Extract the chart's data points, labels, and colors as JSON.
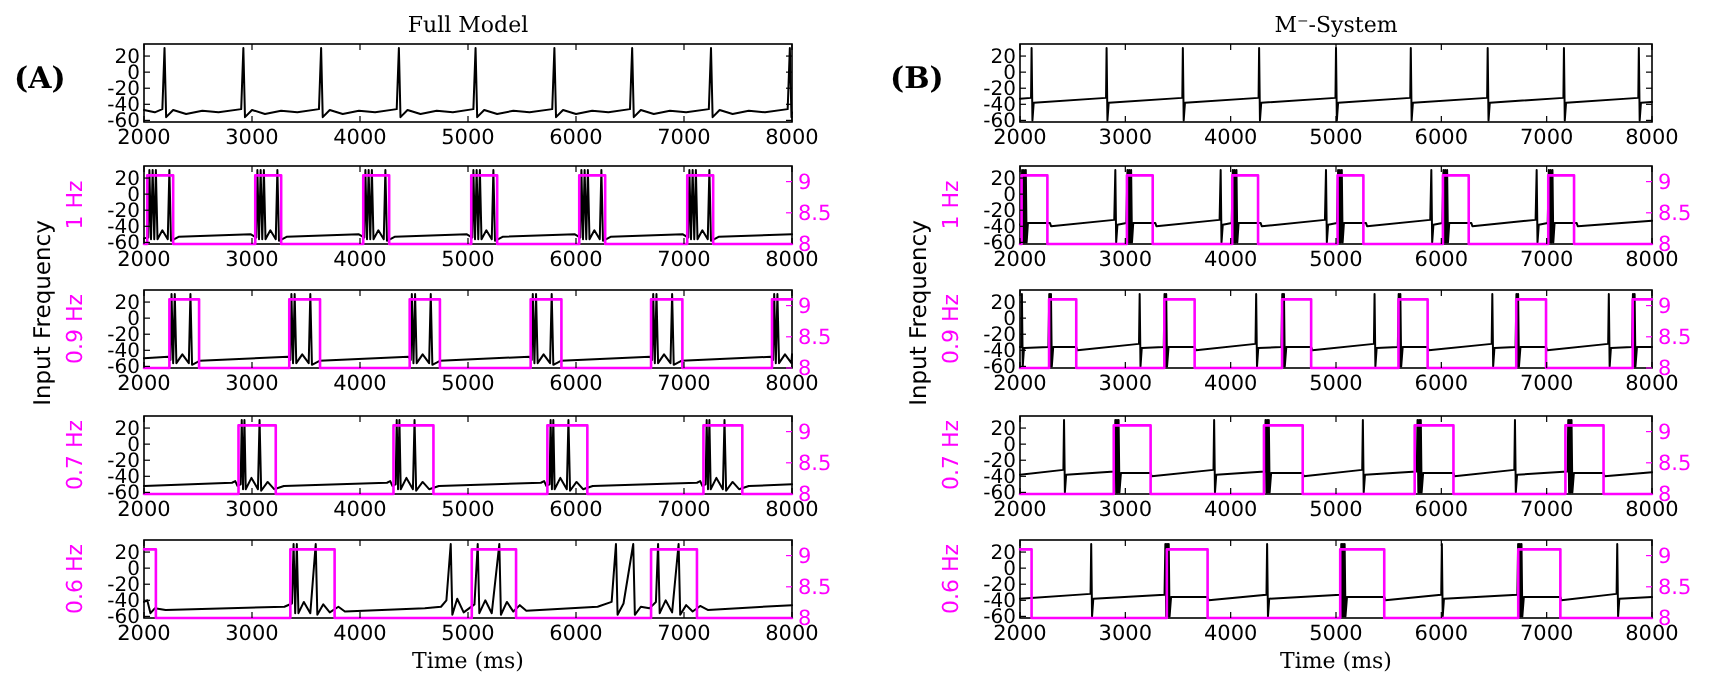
{
  "chart_data": [
    {
      "type": "line",
      "title": "Full Model",
      "annotations": [
        "(A)"
      ],
      "xlim": [
        2000,
        8000
      ],
      "xticks": [
        2000,
        3000,
        4000,
        5000,
        6000,
        7000,
        8000
      ],
      "ylim": [
        -62,
        35
      ],
      "yticks": [
        -60,
        -40,
        -20,
        0,
        20
      ],
      "series": [
        {
          "color": "#000000",
          "x": [
            2000,
            2100,
            2170,
            2190,
            2205,
            2270,
            2390,
            2540,
            2690,
            2900,
            2920,
            2935,
            3000,
            3120,
            3270,
            3420,
            3620,
            3640,
            3655,
            3720,
            3840,
            3990,
            4140,
            4340,
            4360,
            4375,
            4440,
            4560,
            4710,
            4860,
            5050,
            5070,
            5085,
            5150,
            5270,
            5420,
            5570,
            5780,
            5800,
            5815,
            5880,
            6000,
            6150,
            6300,
            6500,
            6520,
            6535,
            6600,
            6720,
            6870,
            7020,
            7230,
            7250,
            7265,
            7330,
            7450,
            7600,
            7750,
            7960,
            7980,
            7995,
            8000
          ],
          "values": [
            -47,
            -50,
            -46,
            30,
            -56,
            -47,
            -52,
            -48,
            -50,
            -46,
            30,
            -56,
            -47,
            -52,
            -48,
            -50,
            -46,
            30,
            -56,
            -47,
            -52,
            -48,
            -50,
            -46,
            30,
            -56,
            -47,
            -52,
            -48,
            -50,
            -46,
            30,
            -56,
            -47,
            -52,
            -48,
            -50,
            -46,
            30,
            -56,
            -47,
            -52,
            -48,
            -50,
            -46,
            30,
            -56,
            -47,
            -52,
            -48,
            -50,
            -46,
            30,
            -56,
            -47,
            -52,
            -48,
            -50,
            -46,
            30,
            -56,
            -50
          ]
        }
      ]
    },
    {
      "type": "line",
      "ylabel": "1 Hz",
      "xlim": [
        2000,
        8000
      ],
      "xticks": [
        2000,
        3000,
        4000,
        5000,
        6000,
        7000,
        8000
      ],
      "ylim": [
        -62,
        35
      ],
      "yticks": [
        -60,
        -40,
        -20,
        0,
        20
      ],
      "y2lim": [
        8,
        9.25
      ],
      "y2ticks": [
        8,
        8.5,
        9
      ],
      "series": [
        {
          "color": "#000000",
          "x": [
            2000,
            2040,
            2050,
            2065,
            2080,
            2095,
            2110,
            2125,
            2170,
            2220,
            2235,
            2250,
            2320,
            2990,
            3040,
            3050,
            3065,
            3080,
            3095,
            3110,
            3125,
            3170,
            3220,
            3235,
            3250,
            3320,
            3990,
            4040,
            4050,
            4065,
            4080,
            4095,
            4110,
            4125,
            4170,
            4220,
            4235,
            4250,
            4320,
            4990,
            5040,
            5050,
            5065,
            5080,
            5095,
            5110,
            5125,
            5170,
            5220,
            5235,
            5250,
            5320,
            5990,
            6040,
            6050,
            6065,
            6080,
            6095,
            6110,
            6125,
            6170,
            6220,
            6235,
            6250,
            6320,
            6990,
            7040,
            7050,
            7065,
            7080,
            7095,
            7110,
            7125,
            7170,
            7220,
            7235,
            7250,
            7320,
            8000
          ],
          "values": [
            -55,
            -54,
            30,
            -56,
            30,
            -56,
            30,
            -56,
            -45,
            -56,
            30,
            -58,
            -53,
            -50,
            -54,
            30,
            -56,
            30,
            -56,
            30,
            -56,
            -45,
            -56,
            30,
            -58,
            -53,
            -50,
            -54,
            30,
            -56,
            30,
            -56,
            30,
            -56,
            -45,
            -56,
            30,
            -58,
            -53,
            -50,
            -54,
            30,
            -56,
            30,
            -56,
            30,
            -56,
            -45,
            -56,
            30,
            -58,
            -53,
            -50,
            -54,
            30,
            -56,
            30,
            -56,
            30,
            -56,
            -45,
            -56,
            30,
            -58,
            -53,
            -50,
            -54,
            30,
            -56,
            30,
            -56,
            30,
            -56,
            -45,
            -56,
            30,
            -58,
            -53,
            -50
          ]
        },
        {
          "color": "#ff00ff",
          "axis": "y2",
          "x": [
            2000,
            2030,
            2030,
            2270,
            2270,
            3030,
            3030,
            3270,
            3270,
            4030,
            4030,
            4270,
            4270,
            5030,
            5030,
            5270,
            5270,
            6030,
            6030,
            6270,
            6270,
            7030,
            7030,
            7270,
            7270,
            8000
          ],
          "values": [
            8,
            8,
            9.1,
            9.1,
            8,
            8,
            9.1,
            9.1,
            8,
            8,
            9.1,
            9.1,
            8,
            8,
            9.1,
            9.1,
            8,
            8,
            9.1,
            9.1,
            8,
            8,
            9.1,
            9.1,
            8,
            8
          ]
        }
      ]
    },
    {
      "type": "line",
      "ylabel": "0.9 Hz",
      "annotations": [
        "Input Frequency"
      ],
      "xlim": [
        2000,
        8000
      ],
      "xticks": [
        2000,
        3000,
        4000,
        5000,
        6000,
        7000,
        8000
      ],
      "ylim": [
        -62,
        35
      ],
      "yticks": [
        -60,
        -40,
        -20,
        0,
        20
      ],
      "y2lim": [
        8,
        9.25
      ],
      "y2ticks": [
        8,
        8.5,
        9
      ],
      "series": [
        {
          "color": "#000000",
          "x": [
            2000,
            2225,
            2245,
            2255,
            2270,
            2285,
            2300,
            2355,
            2415,
            2430,
            2445,
            2515,
            3335,
            3355,
            3365,
            3380,
            3395,
            3410,
            3465,
            3525,
            3540,
            3555,
            3625,
            4450,
            4470,
            4480,
            4495,
            4510,
            4525,
            4580,
            4640,
            4655,
            4670,
            4740,
            5570,
            5590,
            5600,
            5615,
            5630,
            5645,
            5700,
            5760,
            5775,
            5790,
            5860,
            6685,
            6705,
            6715,
            6730,
            6745,
            6760,
            6815,
            6875,
            6890,
            6905,
            6975,
            7805,
            7825,
            7835,
            7850,
            7865,
            7880,
            7935,
            7995,
            8000
          ],
          "values": [
            -50,
            -48,
            -52,
            30,
            -56,
            30,
            -56,
            -45,
            -56,
            30,
            -58,
            -53,
            -48,
            -52,
            30,
            -56,
            30,
            -56,
            -45,
            -56,
            30,
            -58,
            -53,
            -48,
            -52,
            30,
            -56,
            30,
            -56,
            -45,
            -56,
            30,
            -58,
            -53,
            -48,
            -52,
            30,
            -56,
            30,
            -56,
            -45,
            -56,
            30,
            -58,
            -53,
            -48,
            -52,
            30,
            -56,
            30,
            -56,
            -45,
            -56,
            30,
            -58,
            -53,
            -48,
            -52,
            30,
            -56,
            30,
            -56,
            -45,
            -56,
            -45
          ]
        },
        {
          "color": "#ff00ff",
          "axis": "y2",
          "x": [
            2000,
            2235,
            2235,
            2510,
            2510,
            3345,
            3345,
            3630,
            3630,
            4460,
            4460,
            4740,
            4740,
            5580,
            5580,
            5865,
            5865,
            6695,
            6695,
            6985,
            6985,
            7815,
            7815,
            8000
          ],
          "values": [
            8,
            8,
            9.1,
            9.1,
            8,
            8,
            9.1,
            9.1,
            8,
            8,
            9.1,
            9.1,
            8,
            8,
            9.1,
            9.1,
            8,
            8,
            9.1,
            9.1,
            8,
            8,
            9.1,
            9.1
          ]
        }
      ]
    },
    {
      "type": "line",
      "ylabel": "0.7 Hz",
      "xlim": [
        2000,
        8000
      ],
      "xticks": [
        2000,
        3000,
        4000,
        5000,
        6000,
        7000,
        8000
      ],
      "ylim": [
        -62,
        35
      ],
      "yticks": [
        -60,
        -40,
        -20,
        0,
        20
      ],
      "y2lim": [
        8,
        9.25
      ],
      "y2ticks": [
        8,
        8.5,
        9
      ],
      "series": [
        {
          "color": "#000000",
          "x": [
            2000,
            2815,
            2845,
            2865,
            2895,
            2905,
            2917,
            2930,
            2942,
            2995,
            3055,
            3070,
            3085,
            3145,
            3205,
            3295,
            4250,
            4280,
            4300,
            4330,
            4340,
            4352,
            4365,
            4377,
            4430,
            4490,
            4505,
            4520,
            4580,
            4640,
            4730,
            5675,
            5705,
            5725,
            5755,
            5765,
            5777,
            5790,
            5802,
            5855,
            5915,
            5930,
            5945,
            6005,
            6065,
            6155,
            7120,
            7150,
            7170,
            7200,
            7210,
            7222,
            7235,
            7247,
            7300,
            7360,
            7375,
            7390,
            7450,
            7510,
            7600,
            8000
          ],
          "values": [
            -52,
            -48,
            -46,
            -52,
            -50,
            30,
            -56,
            30,
            -56,
            -42,
            -56,
            30,
            -58,
            -47,
            -56,
            -52,
            -48,
            -46,
            -52,
            -50,
            30,
            -56,
            30,
            -56,
            -42,
            -56,
            30,
            -58,
            -47,
            -56,
            -52,
            -48,
            -46,
            -52,
            -50,
            30,
            -56,
            30,
            -56,
            -42,
            -56,
            30,
            -58,
            -47,
            -56,
            -52,
            -48,
            -46,
            -52,
            -50,
            30,
            -56,
            30,
            -56,
            -42,
            -56,
            30,
            -58,
            -47,
            -56,
            -52,
            -50
          ]
        },
        {
          "color": "#ff00ff",
          "axis": "y2",
          "x": [
            2000,
            2875,
            2875,
            3220,
            3220,
            4310,
            4310,
            4680,
            4680,
            5735,
            5735,
            6105,
            6105,
            7180,
            7180,
            7540,
            7540,
            8000
          ],
          "values": [
            8,
            8,
            9.1,
            9.1,
            8,
            8,
            9.1,
            9.1,
            8,
            8,
            9.1,
            9.1,
            8,
            8,
            9.1,
            9.1,
            8,
            8
          ]
        }
      ]
    },
    {
      "type": "line",
      "ylabel": "0.6 Hz",
      "xlabel": "Time (ms)",
      "xlim": [
        2000,
        8000
      ],
      "xticks": [
        2000,
        3000,
        4000,
        5000,
        6000,
        7000,
        8000
      ],
      "ylim": [
        -62,
        35
      ],
      "yticks": [
        -60,
        -40,
        -20,
        0,
        20
      ],
      "y2lim": [
        8,
        9.25
      ],
      "y2ticks": [
        8,
        8.5,
        9
      ],
      "series": [
        {
          "color": "#000000",
          "x": [
            2000,
            2030,
            2060,
            2100,
            2200,
            3300,
            3370,
            3385,
            3400,
            3415,
            3430,
            3480,
            3540,
            3590,
            3605,
            3660,
            3720,
            3800,
            3860,
            4600,
            4750,
            4800,
            4840,
            4855,
            4900,
            4960,
            5060,
            5090,
            5105,
            5160,
            5220,
            5290,
            5305,
            5360,
            5420,
            5480,
            5540,
            6200,
            6330,
            6370,
            6385,
            6440,
            6530,
            6545,
            6600,
            6680,
            6740,
            6760,
            6775,
            6830,
            6890,
            6950,
            6965,
            7020,
            7080,
            7150,
            7220,
            8000
          ],
          "values": [
            -42,
            -40,
            -56,
            -50,
            -52,
            -48,
            -44,
            30,
            -56,
            30,
            -56,
            -42,
            -56,
            30,
            -58,
            -45,
            -55,
            -48,
            -54,
            -50,
            -48,
            -40,
            30,
            -58,
            -38,
            -55,
            -45,
            30,
            -56,
            -40,
            -56,
            30,
            -58,
            -42,
            -54,
            -46,
            -53,
            -48,
            -42,
            30,
            -58,
            -44,
            30,
            -58,
            -48,
            -50,
            -42,
            30,
            -56,
            -40,
            -55,
            30,
            -58,
            -46,
            -54,
            -47,
            -52,
            -46
          ]
        },
        {
          "color": "#ff00ff",
          "axis": "y2",
          "x": [
            2000,
            2110,
            2110,
            3355,
            3355,
            3765,
            3765,
            5035,
            5035,
            5445,
            5445,
            6695,
            6695,
            7120,
            7120,
            8000
          ],
          "values": [
            9.1,
            9.1,
            8,
            8,
            9.1,
            9.1,
            8,
            8,
            9.1,
            9.1,
            8,
            8,
            9.1,
            9.1,
            8,
            8
          ]
        }
      ]
    },
    {
      "type": "line",
      "title": "M⁻-System",
      "annotations": [
        "(B)"
      ],
      "xlim": [
        2000,
        8000
      ],
      "xticks": [
        2000,
        3000,
        4000,
        5000,
        6000,
        7000,
        8000
      ],
      "ylim": [
        -62,
        35
      ],
      "yticks": [
        -60,
        -40,
        -20,
        0,
        20
      ],
      "series": [
        {
          "color": "#000000",
          "x": [
            2000,
            2105,
            2110,
            2118,
            2130,
            2817,
            2822,
            2830,
            2842,
            3541,
            3546,
            3554,
            3566,
            4265,
            4270,
            4278,
            4290,
            4995,
            5000,
            5008,
            5020,
            5705,
            5710,
            5718,
            5730,
            6435,
            6440,
            6448,
            6460,
            7159,
            7164,
            7172,
            7184,
            7870,
            7875,
            7883,
            7895,
            8000
          ],
          "values": [
            -33,
            -32,
            30,
            -60,
            -38,
            -32,
            30,
            -60,
            -38,
            -32,
            30,
            -60,
            -38,
            -32,
            30,
            -60,
            -38,
            -32,
            30,
            -60,
            -38,
            -32,
            30,
            -60,
            -38,
            -32,
            30,
            -60,
            -38,
            -32,
            30,
            -60,
            -38,
            -32,
            30,
            -60,
            -38,
            -37
          ]
        }
      ]
    },
    {
      "type": "line",
      "ylabel": "1 Hz",
      "xlim": [
        2000,
        8000
      ],
      "xticks": [
        2000,
        3000,
        4000,
        5000,
        6000,
        7000,
        8000
      ],
      "ylim": [
        -62,
        35
      ],
      "yticks": [
        -60,
        -40,
        -20,
        0,
        20
      ],
      "y2lim": [
        8,
        9.25
      ],
      "y2ticks": [
        8,
        8.5,
        9
      ],
      "series": [
        {
          "color": "#000000",
          "x": [
            2000,
            2010,
            2020,
            2028,
            2037,
            2045,
            2055,
            2063,
            2075,
            2285,
            2295,
            2895,
            2905,
            2913,
            2925,
            3010,
            3020,
            3028,
            3037,
            3045,
            3055,
            3063,
            3075,
            3285,
            3295,
            3895,
            3905,
            3913,
            3925,
            4010,
            4020,
            4028,
            4037,
            4045,
            4055,
            4063,
            4075,
            4285,
            4295,
            4895,
            4905,
            4913,
            4925,
            5010,
            5020,
            5028,
            5037,
            5045,
            5055,
            5063,
            5075,
            5285,
            5295,
            5895,
            5905,
            5913,
            5925,
            6010,
            6020,
            6028,
            6037,
            6045,
            6055,
            6063,
            6075,
            6285,
            6295,
            6895,
            6905,
            6913,
            6925,
            7010,
            7020,
            7028,
            7037,
            7045,
            7055,
            7063,
            7075,
            7285,
            7295,
            8000
          ],
          "values": [
            -38,
            -36,
            30,
            -60,
            30,
            -60,
            30,
            -60,
            -36,
            -36,
            -40,
            -32,
            30,
            -60,
            -38,
            -36,
            30,
            -60,
            30,
            -60,
            30,
            -60,
            -36,
            -36,
            -40,
            -32,
            30,
            -60,
            -38,
            -36,
            30,
            -60,
            30,
            -60,
            30,
            -60,
            -36,
            -36,
            -40,
            -32,
            30,
            -60,
            -38,
            -36,
            30,
            -60,
            30,
            -60,
            30,
            -60,
            -36,
            -36,
            -40,
            -32,
            30,
            -60,
            -38,
            -36,
            30,
            -60,
            30,
            -60,
            30,
            -60,
            -36,
            -36,
            -40,
            -32,
            30,
            -60,
            -38,
            -36,
            30,
            -60,
            30,
            -60,
            30,
            -60,
            -36,
            -36,
            -40,
            -33
          ]
        },
        {
          "color": "#ff00ff",
          "axis": "y2",
          "x": [
            2000,
            2015,
            2015,
            2260,
            2260,
            3015,
            3015,
            3260,
            3260,
            4015,
            4015,
            4260,
            4260,
            5015,
            5015,
            5260,
            5260,
            6015,
            6015,
            6260,
            6260,
            7015,
            7015,
            7260,
            7260,
            8000
          ],
          "values": [
            8,
            8,
            9.1,
            9.1,
            8,
            8,
            9.1,
            9.1,
            8,
            8,
            9.1,
            9.1,
            8,
            8,
            9.1,
            9.1,
            8,
            8,
            9.1,
            9.1,
            8,
            8,
            9.1,
            9.1,
            8,
            8
          ]
        }
      ]
    },
    {
      "type": "line",
      "ylabel": "0.9 Hz",
      "annotations": [
        "Input Frequency"
      ],
      "xlim": [
        2000,
        8000
      ],
      "xticks": [
        2000,
        3000,
        4000,
        5000,
        6000,
        7000,
        8000
      ],
      "ylim": [
        -62,
        35
      ],
      "yticks": [
        -60,
        -40,
        -20,
        0,
        20
      ],
      "y2lim": [
        8,
        9.25
      ],
      "y2ticks": [
        8,
        8.5,
        9
      ],
      "series": [
        {
          "color": "#000000",
          "x": [
            2000,
            2013,
            2018,
            2026,
            2038,
            2270,
            2278,
            2286,
            2294,
            2302,
            2315,
            2534,
            2545,
            3130,
            3136,
            3144,
            3156,
            3365,
            3372,
            3380,
            3388,
            3396,
            3410,
            3658,
            3670,
            4236,
            4242,
            4250,
            4262,
            4482,
            4490,
            4498,
            4506,
            4514,
            4528,
            4764,
            4775,
            5360,
            5366,
            5374,
            5386,
            5587,
            5595,
            5603,
            5611,
            5619,
            5633,
            5870,
            5880,
            6478,
            6484,
            6492,
            6504,
            6705,
            6713,
            6721,
            6729,
            6737,
            6751,
            6994,
            7005,
            7584,
            7590,
            7598,
            7610,
            7811,
            7819,
            7827,
            7835,
            7843,
            7857,
            8000
          ],
          "values": [
            -36,
            -36,
            30,
            -60,
            -37,
            -36,
            30,
            -60,
            30,
            -60,
            -36,
            -36,
            -40,
            -32,
            30,
            -60,
            -37,
            -36,
            30,
            -60,
            30,
            -60,
            -36,
            -36,
            -40,
            -32,
            30,
            -60,
            -37,
            -36,
            30,
            -60,
            30,
            -60,
            -36,
            -36,
            -40,
            -32,
            30,
            -60,
            -37,
            -36,
            30,
            -60,
            30,
            -60,
            -36,
            -36,
            -40,
            -32,
            30,
            -60,
            -37,
            -36,
            30,
            -60,
            30,
            -60,
            -36,
            -36,
            -40,
            -32,
            30,
            -60,
            -37,
            -36,
            30,
            -60,
            30,
            -60,
            -36,
            -36
          ]
        },
        {
          "color": "#ff00ff",
          "axis": "y2",
          "x": [
            2000,
            2276,
            2276,
            2534,
            2534,
            3370,
            3370,
            3658,
            3658,
            4488,
            4488,
            4764,
            4764,
            5593,
            5593,
            5870,
            5870,
            6711,
            6711,
            6994,
            6994,
            7817,
            7817,
            8000
          ],
          "values": [
            8,
            8,
            9.1,
            9.1,
            8,
            8,
            9.1,
            9.1,
            8,
            8,
            9.1,
            9.1,
            8,
            8,
            9.1,
            9.1,
            8,
            8,
            9.1,
            9.1,
            8,
            8,
            9.1,
            9.1
          ]
        }
      ]
    },
    {
      "type": "line",
      "ylabel": "0.7 Hz",
      "xlim": [
        2000,
        8000
      ],
      "xticks": [
        2000,
        3000,
        4000,
        5000,
        6000,
        7000,
        8000
      ],
      "ylim": [
        -62,
        35
      ],
      "yticks": [
        -60,
        -40,
        -20,
        0,
        20
      ],
      "y2lim": [
        8,
        9.25
      ],
      "y2ticks": [
        8,
        8.5,
        9
      ],
      "series": [
        {
          "color": "#000000",
          "x": [
            2000,
            2412,
            2418,
            2426,
            2438,
            2898,
            2905,
            2913,
            2920,
            2928,
            2936,
            2944,
            2958,
            3240,
            3250,
            3837,
            3843,
            3851,
            3863,
            4324,
            4331,
            4339,
            4346,
            4354,
            4362,
            4370,
            4384,
            4684,
            4694,
            5249,
            5255,
            5263,
            5275,
            5767,
            5774,
            5782,
            5789,
            5797,
            5805,
            5813,
            5827,
            6115,
            6125,
            6693,
            6699,
            6707,
            6719,
            7198,
            7205,
            7213,
            7220,
            7228,
            7236,
            7244,
            7258,
            7540,
            7550,
            8000
          ],
          "values": [
            -38,
            -32,
            30,
            -60,
            -38,
            -34,
            30,
            -60,
            30,
            -60,
            30,
            -60,
            -36,
            -36,
            -40,
            -32,
            30,
            -60,
            -38,
            -34,
            30,
            -60,
            30,
            -60,
            30,
            -60,
            -36,
            -36,
            -40,
            -32,
            30,
            -60,
            -38,
            -34,
            30,
            -60,
            30,
            -60,
            30,
            -60,
            -36,
            -36,
            -40,
            -32,
            30,
            -60,
            -38,
            -34,
            30,
            -60,
            30,
            -60,
            30,
            -60,
            -36,
            -36,
            -40,
            -35
          ]
        },
        {
          "color": "#ff00ff",
          "axis": "y2",
          "x": [
            2000,
            2890,
            2890,
            3240,
            3240,
            4316,
            4316,
            4684,
            4684,
            5747,
            5747,
            6115,
            6115,
            7178,
            7178,
            7540,
            7540,
            8000
          ],
          "values": [
            8,
            8,
            9.1,
            9.1,
            8,
            8,
            9.1,
            9.1,
            8,
            8,
            9.1,
            9.1,
            8,
            8,
            9.1,
            9.1,
            8,
            8
          ]
        }
      ]
    },
    {
      "type": "line",
      "ylabel": "0.6 Hz",
      "xlabel": "Time (ms)",
      "xlim": [
        2000,
        8000
      ],
      "xticks": [
        2000,
        3000,
        4000,
        5000,
        6000,
        7000,
        8000
      ],
      "ylim": [
        -62,
        35
      ],
      "yticks": [
        -60,
        -40,
        -20,
        0,
        20
      ],
      "y2lim": [
        8,
        9.25
      ],
      "y2ticks": [
        8,
        8.5,
        9
      ],
      "series": [
        {
          "color": "#000000",
          "x": [
            2000,
            2670,
            2676,
            2684,
            2696,
            3372,
            3380,
            3388,
            3396,
            3404,
            3412,
            3420,
            3434,
            3781,
            3791,
            4340,
            4346,
            4354,
            4366,
            5043,
            5050,
            5058,
            5066,
            5074,
            5082,
            5090,
            5104,
            5458,
            5468,
            5999,
            6005,
            6013,
            6025,
            6722,
            6729,
            6737,
            6745,
            6753,
            6761,
            6769,
            6783,
            7130,
            7140,
            7664,
            7670,
            7678,
            7690,
            8000
          ],
          "values": [
            -38,
            -32,
            30,
            -60,
            -38,
            -33,
            30,
            -60,
            30,
            -60,
            30,
            -60,
            -36,
            -36,
            -40,
            -33,
            30,
            -60,
            -38,
            -33,
            30,
            -60,
            30,
            -60,
            30,
            -60,
            -36,
            -36,
            -40,
            -33,
            30,
            -60,
            -38,
            -33,
            30,
            -60,
            30,
            -60,
            30,
            -60,
            -36,
            -36,
            -40,
            -32,
            30,
            -60,
            -38,
            -36
          ]
        },
        {
          "color": "#ff00ff",
          "axis": "y2",
          "x": [
            2000,
            2110,
            2110,
            3394,
            3394,
            3781,
            3781,
            5040,
            5040,
            5458,
            5458,
            6730,
            6730,
            7130,
            7130,
            8000
          ],
          "values": [
            9.1,
            9.1,
            8,
            8,
            9.1,
            9.1,
            8,
            8,
            9.1,
            9.1,
            8,
            8,
            9.1,
            9.1,
            8,
            8
          ]
        }
      ]
    }
  ]
}
